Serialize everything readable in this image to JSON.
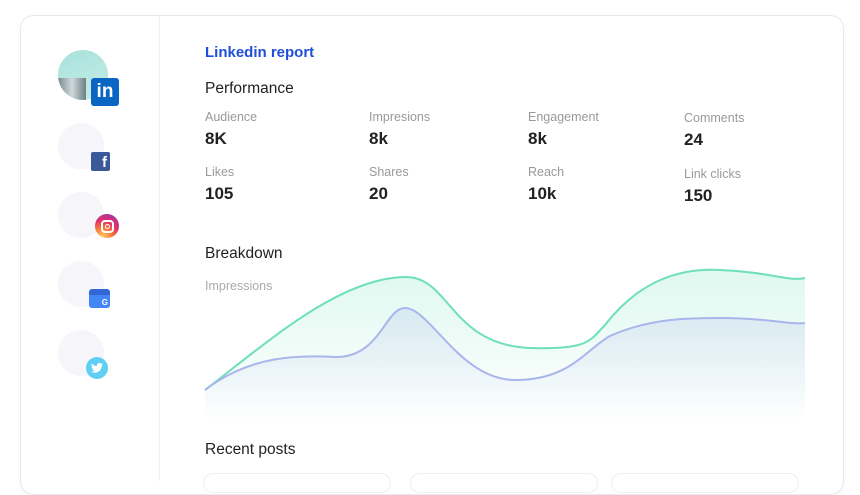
{
  "header": {
    "title": "Linkedin report"
  },
  "accounts": [
    {
      "network": "linkedin",
      "icon": "linkedin-icon",
      "color": "#0a66c2",
      "active": true,
      "badge_text": "in"
    },
    {
      "network": "facebook",
      "icon": "facebook-icon",
      "color": "#3b5998",
      "badge_text": "f"
    },
    {
      "network": "instagram",
      "icon": "instagram-icon",
      "color": "#e1306c"
    },
    {
      "network": "google-my-business",
      "icon": "google-my-business-icon",
      "color": "#4285f4"
    },
    {
      "network": "twitter",
      "icon": "twitter-icon",
      "color": "#5fd0f3"
    }
  ],
  "performance": {
    "heading": "Performance",
    "metrics": [
      {
        "label": "Audience",
        "value": "8K"
      },
      {
        "label": "Impresions",
        "value": "8k"
      },
      {
        "label": "Engagement",
        "value": "8k"
      },
      {
        "label": "Comments",
        "value": "24"
      },
      {
        "label": "Likes",
        "value": "105"
      },
      {
        "label": "Shares",
        "value": "20"
      },
      {
        "label": "Reach",
        "value": "10k"
      },
      {
        "label": "Link clicks",
        "value": "150"
      }
    ]
  },
  "breakdown": {
    "heading": "Breakdown",
    "series_label": "Impressions",
    "colors": {
      "primary": "#6ee0b8",
      "secondary": "#a9b6ec"
    }
  },
  "recent_posts": {
    "heading": "Recent posts"
  }
}
